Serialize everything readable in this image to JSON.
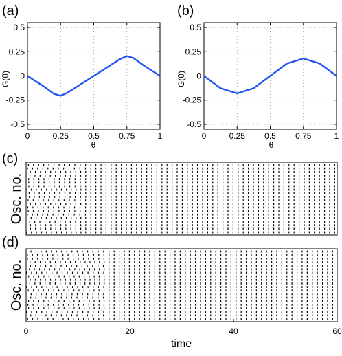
{
  "chart_data": [
    {
      "panel_label": "(a)",
      "type": "line",
      "xlabel": "θ",
      "ylabel": "G(θ)",
      "xlim": [
        0,
        1
      ],
      "ylim": [
        -0.55,
        0.55
      ],
      "xticks": [
        "0",
        "0.25",
        "0.5",
        "0.75",
        "1"
      ],
      "yticks": [
        "0.5",
        "0.25",
        "0",
        "-0.25",
        "-0.5"
      ],
      "grid": true,
      "line_color": "#2255ee",
      "x": [
        0,
        0.125,
        0.2,
        0.25,
        0.3,
        0.5,
        0.7,
        0.75,
        0.8,
        0.875,
        1
      ],
      "y": [
        0,
        -0.11,
        -0.185,
        -0.205,
        -0.175,
        0,
        0.175,
        0.205,
        0.185,
        0.11,
        0
      ]
    },
    {
      "panel_label": "(b)",
      "type": "line",
      "xlabel": "θ",
      "ylabel": "G(θ)",
      "xlim": [
        0,
        1
      ],
      "ylim": [
        -0.55,
        0.55
      ],
      "xticks": [
        "0",
        "0.25",
        "0.5",
        "0.75",
        "1"
      ],
      "yticks": [
        "0.5",
        "0.25",
        "0",
        "-0.25",
        "-0.5"
      ],
      "grid": true,
      "line_color": "#2255ee",
      "x": [
        0,
        0.125,
        0.25,
        0.375,
        0.5,
        0.625,
        0.75,
        0.875,
        1
      ],
      "y": [
        0,
        -0.127,
        -0.18,
        -0.127,
        0,
        0.127,
        0.18,
        0.127,
        0
      ]
    },
    {
      "panel_label": "(c)",
      "type": "scatter",
      "ylabel": "Osc. no.",
      "xlim": [
        0,
        60
      ],
      "oscillators": 20,
      "sync_onset_time": 11.5,
      "period": 0.98
    },
    {
      "panel_label": "(d)",
      "type": "scatter",
      "xlabel": "time",
      "ylabel": "Osc. no.",
      "xlim": [
        0,
        60
      ],
      "xticks": [
        "0",
        "20",
        "40",
        "60"
      ],
      "oscillators": 20,
      "sync_onset_time": 16,
      "period": 0.98
    }
  ]
}
